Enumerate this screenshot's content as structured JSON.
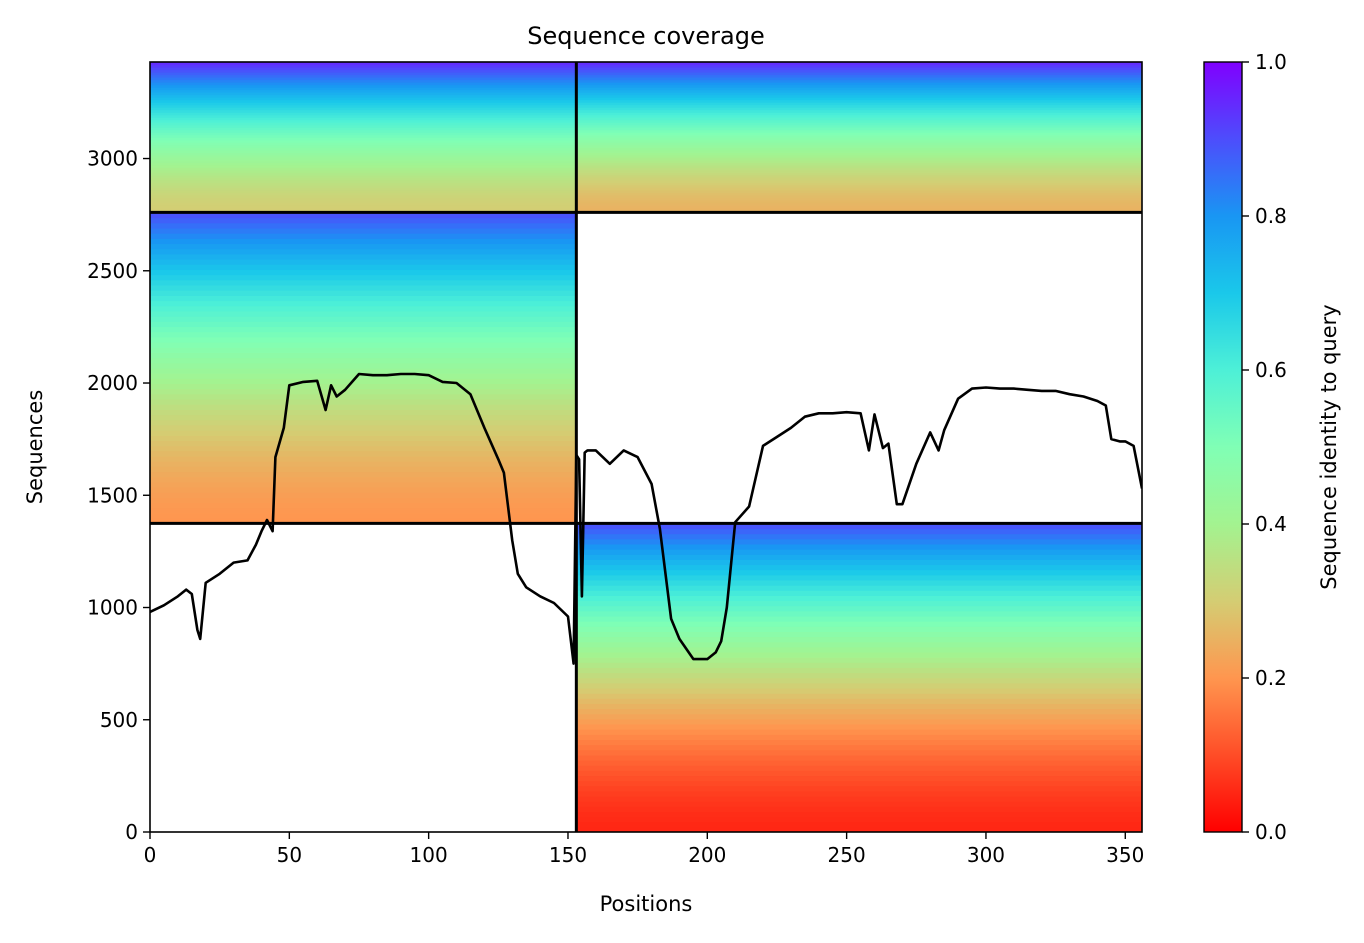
{
  "chart_data": {
    "type": "heatmap",
    "title": "Sequence coverage",
    "xlabel": "Positions",
    "ylabel": "Sequences",
    "xlim": [
      0,
      356
    ],
    "ylim": [
      0,
      3430
    ],
    "xticks": [
      0,
      50,
      100,
      150,
      200,
      250,
      300,
      350
    ],
    "yticks": [
      0,
      500,
      1000,
      1500,
      2000,
      2500,
      3000
    ],
    "colorbar": {
      "label": "Sequence identity to query",
      "colormap": "rainbow",
      "range": [
        0.0,
        1.0
      ],
      "ticks": [
        0.0,
        0.2,
        0.4,
        0.6,
        0.8,
        1.0
      ],
      "tick_labels": [
        "0.0",
        "0.2",
        "0.4",
        "0.6",
        "0.8",
        "1.0"
      ]
    },
    "blocks": [
      {
        "name": "paired",
        "x_range": [
          0,
          153
        ],
        "y_range": [
          2760,
          3430
        ],
        "identity_bottom": 0.3,
        "identity_top": 0.95
      },
      {
        "name": "paired",
        "x_range": [
          153,
          356
        ],
        "y_range": [
          2760,
          3430
        ],
        "identity_bottom": 0.25,
        "identity_top": 0.95
      },
      {
        "name": "chain_A_unpaired",
        "x_range": [
          0,
          153
        ],
        "y_range": [
          1375,
          2760
        ],
        "identity_bottom": 0.2,
        "identity_top": 0.9
      },
      {
        "name": "chain_B_unpaired",
        "x_range": [
          153,
          356
        ],
        "y_range": [
          0,
          1375
        ],
        "identity_bottom": 0.05,
        "identity_top": 0.9
      }
    ],
    "dividers": {
      "vertical_x": [
        153
      ],
      "horizontal_y": [
        1375,
        2760
      ]
    },
    "coverage_line": {
      "x": [
        0,
        5,
        10,
        13,
        15,
        17,
        18,
        20,
        25,
        30,
        35,
        38,
        40,
        42,
        44,
        45,
        48,
        50,
        55,
        60,
        63,
        65,
        67,
        70,
        75,
        80,
        85,
        90,
        95,
        100,
        105,
        110,
        115,
        120,
        125,
        127,
        130,
        132,
        135,
        140,
        145,
        150,
        152,
        153,
        154,
        155,
        156,
        157,
        160,
        165,
        170,
        175,
        180,
        183,
        185,
        187,
        190,
        195,
        200,
        203,
        205,
        207,
        210,
        215,
        220,
        225,
        230,
        235,
        240,
        245,
        250,
        255,
        258,
        260,
        263,
        265,
        268,
        270,
        275,
        280,
        283,
        285,
        290,
        295,
        300,
        305,
        310,
        315,
        320,
        325,
        330,
        335,
        340,
        343,
        345,
        348,
        350,
        353,
        356
      ],
      "y": [
        980,
        1010,
        1050,
        1080,
        1060,
        900,
        860,
        1110,
        1150,
        1200,
        1210,
        1280,
        1340,
        1390,
        1340,
        1670,
        1800,
        1990,
        2005,
        2010,
        1880,
        1990,
        1940,
        1970,
        2040,
        2035,
        2035,
        2040,
        2040,
        2035,
        2005,
        2000,
        1950,
        1800,
        1660,
        1600,
        1300,
        1150,
        1090,
        1050,
        1020,
        960,
        750,
        1680,
        1660,
        1050,
        1690,
        1700,
        1700,
        1640,
        1700,
        1670,
        1550,
        1350,
        1150,
        950,
        860,
        770,
        770,
        800,
        850,
        1000,
        1380,
        1450,
        1720,
        1760,
        1800,
        1850,
        1865,
        1865,
        1870,
        1865,
        1700,
        1860,
        1710,
        1730,
        1460,
        1460,
        1640,
        1780,
        1700,
        1790,
        1930,
        1975,
        1980,
        1975,
        1975,
        1970,
        1965,
        1965,
        1950,
        1940,
        1920,
        1900,
        1750,
        1740,
        1740,
        1720,
        1530
      ]
    }
  }
}
